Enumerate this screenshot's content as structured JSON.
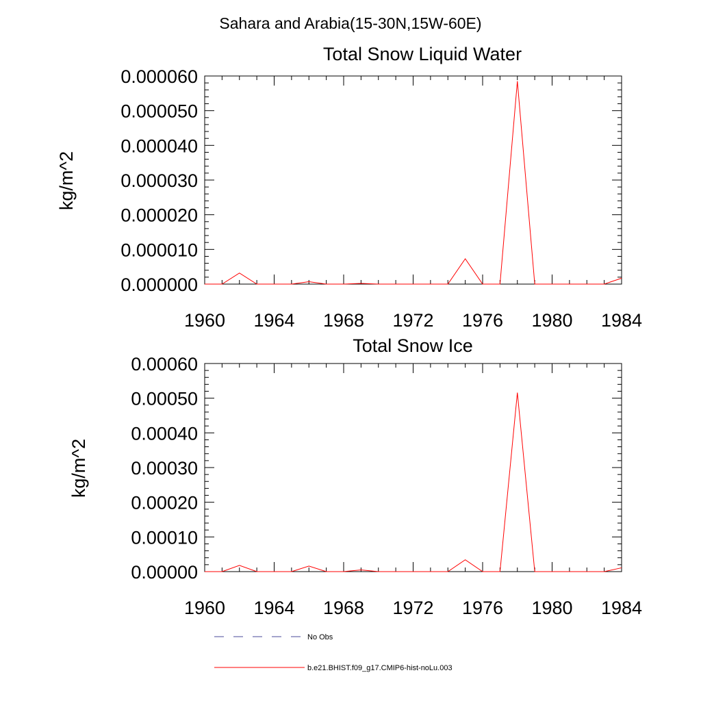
{
  "main_title": "Sahara and Arabia(15-30N,15W-60E)",
  "chart_data": [
    {
      "type": "line",
      "title": "Total Snow Liquid Water",
      "xlabel": "",
      "ylabel": "kg/m^2",
      "xlim": [
        1960,
        1984
      ],
      "ylim": [
        0,
        6e-05
      ],
      "xticks": [
        "1960",
        "1964",
        "1968",
        "1972",
        "1976",
        "1980",
        "1984"
      ],
      "yticks": [
        "0.000000",
        "0.000010",
        "0.000020",
        "0.000030",
        "0.000040",
        "0.000050",
        "0.000060"
      ],
      "grid": false,
      "x": [
        1960,
        1961,
        1962,
        1963,
        1964,
        1965,
        1966,
        1967,
        1968,
        1969,
        1970,
        1971,
        1972,
        1973,
        1974,
        1975,
        1976,
        1977,
        1978,
        1979,
        1980,
        1981,
        1982,
        1983,
        1984
      ],
      "series": [
        {
          "name": "b.e21.BHIST.f09_g17.CMIP6-hist-noLu.003",
          "color": "#ff0000",
          "values": [
            0,
            0,
            3.2e-06,
            0,
            0,
            0,
            7e-07,
            0,
            0,
            2e-07,
            0,
            0,
            0,
            0,
            0,
            7.3e-06,
            0,
            0,
            5.85e-05,
            0,
            0,
            0,
            0,
            0,
            1.7e-06
          ]
        }
      ]
    },
    {
      "type": "line",
      "title": "Total Snow Ice",
      "xlabel": "",
      "ylabel": "kg/m^2",
      "xlim": [
        1960,
        1984
      ],
      "ylim": [
        0,
        0.0006
      ],
      "xticks": [
        "1960",
        "1964",
        "1968",
        "1972",
        "1976",
        "1980",
        "1984"
      ],
      "yticks": [
        "0.00000",
        "0.00010",
        "0.00020",
        "0.00030",
        "0.00040",
        "0.00050",
        "0.00060"
      ],
      "grid": false,
      "x": [
        1960,
        1961,
        1962,
        1963,
        1964,
        1965,
        1966,
        1967,
        1968,
        1969,
        1970,
        1971,
        1972,
        1973,
        1974,
        1975,
        1976,
        1977,
        1978,
        1979,
        1980,
        1981,
        1982,
        1983,
        1984
      ],
      "series": [
        {
          "name": "b.e21.BHIST.f09_g17.CMIP6-hist-noLu.003",
          "color": "#ff0000",
          "values": [
            0,
            0,
            1.8e-05,
            0,
            0,
            0,
            1.6e-05,
            0,
            0,
            5e-06,
            0,
            0,
            0,
            0,
            0,
            3.4e-05,
            0,
            0,
            0.000516,
            0,
            0,
            0,
            0,
            0,
            1.1e-05
          ]
        }
      ]
    }
  ],
  "legend": {
    "placement": "bottom",
    "items": [
      {
        "label": "No Obs",
        "color": "#4a4a9a",
        "style": "dashed"
      },
      {
        "label": "b.e21.BHIST.f09_g17.CMIP6-hist-noLu.003",
        "color": "#ff0000",
        "style": "solid"
      }
    ]
  }
}
